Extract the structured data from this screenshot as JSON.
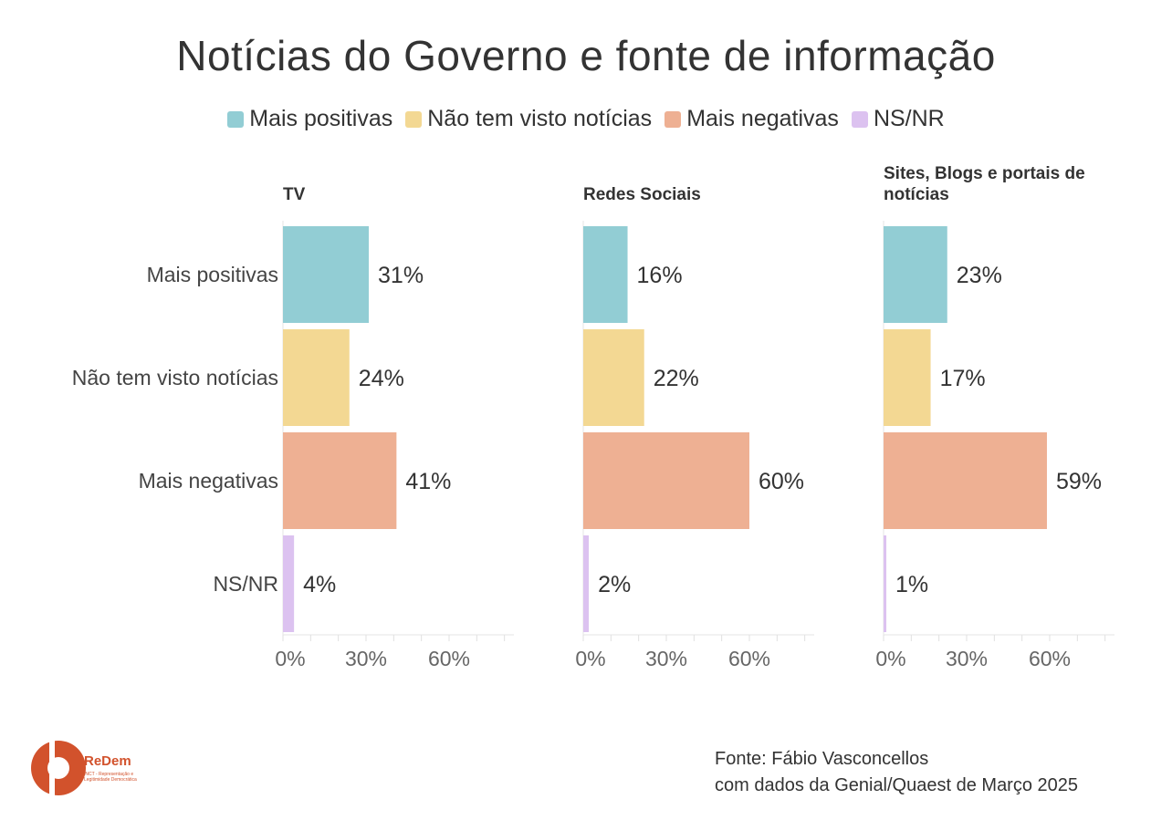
{
  "chart_data": {
    "type": "bar",
    "orientation": "horizontal",
    "title": "Notícias do Governo e fonte de informação",
    "categories": [
      "Mais positivas",
      "Não tem visto notícias",
      "Mais negativas",
      "NS/NR"
    ],
    "colors": [
      "#92cdd4",
      "#f3d893",
      "#eeb093",
      "#dcc2f0"
    ],
    "xlim": [
      0,
      80
    ],
    "xticks": [
      "0%",
      "30%",
      "60%"
    ],
    "xtick_values": [
      0,
      30,
      60
    ],
    "value_suffix": "%",
    "panels": [
      {
        "name": "TV",
        "values": [
          31,
          24,
          41,
          4
        ]
      },
      {
        "name": "Redes Sociais",
        "values": [
          16,
          22,
          60,
          2
        ]
      },
      {
        "name": "Sites, Blogs e portais de notícias",
        "values": [
          23,
          17,
          59,
          1
        ]
      }
    ]
  },
  "legend": {
    "items": [
      "Mais positivas",
      "Não tem visto notícias",
      "Mais negativas",
      "NS/NR"
    ]
  },
  "footer": {
    "source_line1": "Fonte: Fábio Vasconcellos",
    "source_line2": "com dados da Genial/Quaest de Março 2025"
  },
  "logo": {
    "name": "ReDem",
    "subtitle": "INCT - Representação e Legitimidade Democrática",
    "color": "#d2522c"
  }
}
